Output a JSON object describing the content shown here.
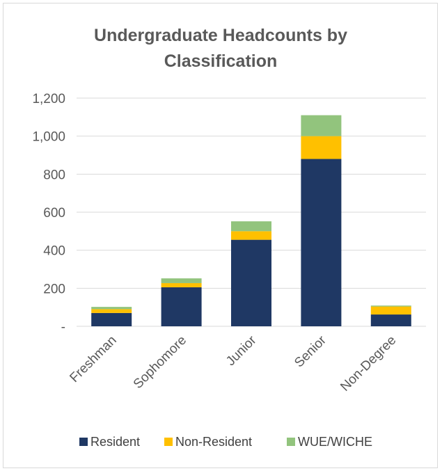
{
  "chart_data": {
    "type": "bar",
    "stacked": true,
    "title": "Undergraduate Headcounts by Classification",
    "title_lines": [
      "Undergraduate Headcounts by",
      "Classification"
    ],
    "categories": [
      "Freshman",
      "Sophomore",
      "Junior",
      "Senior",
      "Non-Degree"
    ],
    "series": [
      {
        "name": "Resident",
        "color": "#1f3864",
        "values": [
          70,
          205,
          455,
          880,
          62
        ]
      },
      {
        "name": "Non-Resident",
        "color": "#ffc000",
        "values": [
          20,
          22,
          45,
          120,
          42
        ]
      },
      {
        "name": "WUE/WICHE",
        "color": "#92c47d",
        "values": [
          12,
          25,
          52,
          110,
          5
        ]
      }
    ],
    "ylim": [
      0,
      1200
    ],
    "yticks": [
      0,
      200,
      400,
      600,
      800,
      1000,
      1200
    ],
    "ytick_labels": [
      "-",
      "200",
      "400",
      "600",
      "800",
      "1,000",
      "1,200"
    ],
    "grid": true,
    "legend_position": "bottom",
    "xlabel": "",
    "ylabel": ""
  }
}
